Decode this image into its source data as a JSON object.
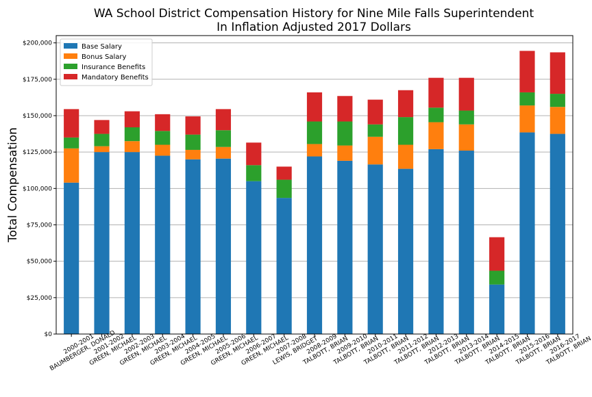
{
  "chart_data": {
    "type": "bar",
    "stacked": true,
    "title": "WA School District Compensation History for Nine Mile Falls Superintendent\nIn Inflation Adjusted 2017 Dollars",
    "xlabel": "",
    "ylabel": "Total Compensation",
    "ylim": [
      0,
      205000
    ],
    "grid": "y",
    "legend_position": "top-left",
    "y_ticks": [
      0,
      25000,
      50000,
      75000,
      100000,
      125000,
      150000,
      175000,
      200000
    ],
    "y_tick_labels": [
      "$0",
      "$25,000",
      "$50,000",
      "$75,000",
      "$100,000",
      "$125,000",
      "$150,000",
      "$175,000",
      "$200,000"
    ],
    "categories": [
      "2000-2001\nBAUMBERGER, DONALD",
      "2001-2002\nGREEN, MICHAEL",
      "2002-2003\nGREEN, MICHAEL",
      "2003-2004\nGREEN, MICHAEL",
      "2004-2005\nGREEN, MICHAEL",
      "2005-2006\nGREEN, MICHAEL",
      "2006-2007\nGREEN, MICHAEL",
      "2007-2008\nLEWIS, BRIDGET",
      "2008-2009\nTALBOTT, BRIAN",
      "2009-2010\nTALBOTT, BRIAN",
      "2010-2011\nTALBOTT, BRIAN",
      "2011-2012\nTALBOTT, BRIAN",
      "2012-2013\nTALBOTT, BRIAN",
      "2013-2014\nTALBOTT, BRIAN",
      "2014-2015\nTALBOTT, BRIAN",
      "2015-2016\nTALBOTT, BRIAN",
      "2016-2017\nTALBOTT, BRIAN"
    ],
    "series": [
      {
        "name": "Base Salary",
        "color": "#1f77b4",
        "values": [
          104000,
          125000,
          125000,
          122500,
          120000,
          120500,
          105000,
          93500,
          122000,
          119000,
          116500,
          113500,
          127000,
          126000,
          34000,
          138500,
          137500
        ]
      },
      {
        "name": "Bonus Salary",
        "color": "#ff7f0e",
        "values": [
          23500,
          4000,
          7500,
          7500,
          6500,
          8000,
          0,
          0,
          8500,
          10500,
          19000,
          16500,
          18500,
          18000,
          0,
          18500,
          18500
        ]
      },
      {
        "name": "Insurance Benefits",
        "color": "#2ca02c",
        "values": [
          7500,
          8500,
          9500,
          9500,
          10500,
          11500,
          11000,
          12500,
          15500,
          16500,
          8500,
          19000,
          10000,
          9500,
          9500,
          9000,
          9000
        ]
      },
      {
        "name": "Mandatory Benefits",
        "color": "#d62728",
        "values": [
          19500,
          9500,
          11000,
          11500,
          12500,
          14500,
          15500,
          9000,
          20000,
          17500,
          17000,
          18500,
          20500,
          22500,
          23000,
          28500,
          28500
        ]
      }
    ]
  }
}
